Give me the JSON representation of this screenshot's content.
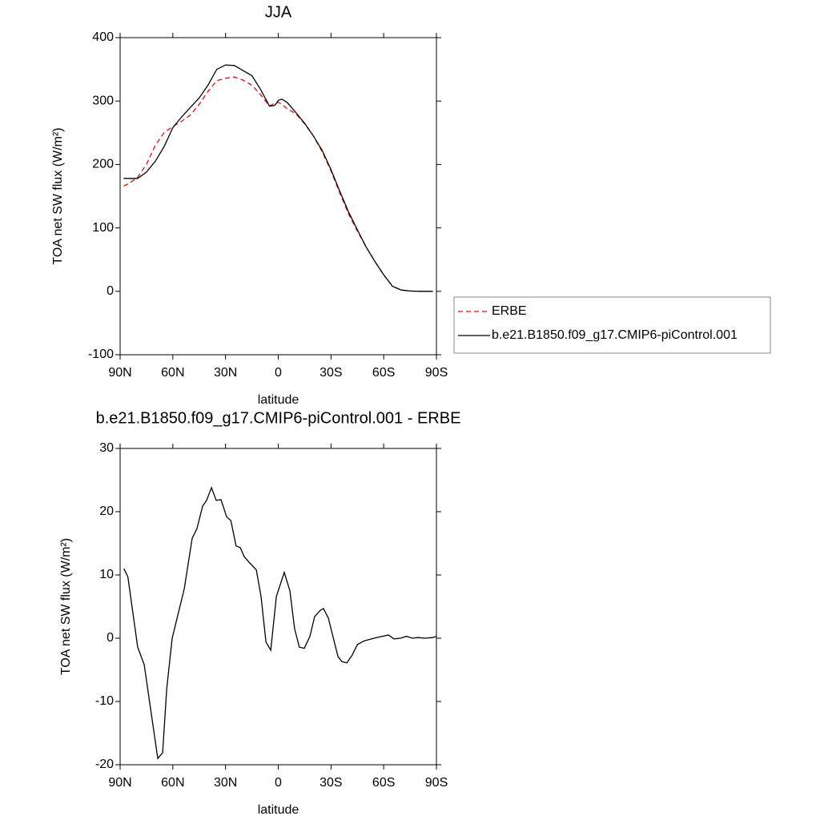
{
  "chart_data": [
    {
      "type": "line",
      "title": "JJA",
      "xlabel": "latitude",
      "ylabel": "TOA net SW flux (W/m²)",
      "x": [
        88,
        85,
        80,
        75,
        70,
        65,
        60,
        55,
        50,
        45,
        40,
        35,
        30,
        25,
        20,
        15,
        10,
        5,
        2,
        0,
        -2,
        -5,
        -10,
        -15,
        -20,
        -25,
        -30,
        -35,
        -40,
        -45,
        -50,
        -55,
        -60,
        -65,
        -70,
        -75,
        -80,
        -85,
        -88
      ],
      "series": [
        {
          "name": "ERBE",
          "color": "#ff0000",
          "linestyle": "dashed",
          "values": [
            166,
            170,
            180,
            200,
            230,
            250,
            260,
            268,
            278,
            295,
            315,
            332,
            336,
            338,
            333,
            325,
            310,
            292,
            297,
            298,
            295,
            288,
            280,
            264,
            245,
            220,
            190,
            155,
            122,
            95,
            70,
            47,
            26,
            8,
            2,
            0.5,
            0,
            0,
            0
          ]
        },
        {
          "name": "b.e21.B1850.f09_g17.CMIP6-piControl.001",
          "color": "#000000",
          "linestyle": "solid",
          "values": [
            178,
            178,
            178,
            188,
            205,
            228,
            258,
            275,
            290,
            305,
            325,
            350,
            357,
            356,
            348,
            340,
            318,
            292,
            293,
            301,
            303,
            298,
            282,
            265,
            245,
            222,
            192,
            158,
            125,
            97,
            70,
            47,
            26,
            8,
            2,
            0.5,
            0,
            0,
            0
          ]
        }
      ],
      "xlim": [
        90,
        -90
      ],
      "xticks": [
        {
          "value": 90,
          "label": "90N"
        },
        {
          "value": 60,
          "label": "60N"
        },
        {
          "value": 30,
          "label": "30N"
        },
        0,
        {
          "value": -30,
          "label": "30S"
        },
        {
          "value": -60,
          "label": "60S"
        },
        {
          "value": -90,
          "label": "90S"
        }
      ],
      "ylim": [
        -100,
        400
      ],
      "yticks": [
        -100,
        0,
        100,
        200,
        300,
        400
      ],
      "legend": "right"
    },
    {
      "type": "line",
      "title": "b.e21.B1850.f09_g17.CMIP6-piControl.001 - ERBE",
      "xlabel": "latitude",
      "ylabel": "TOA net SW flux (W/m²)",
      "x": [
        87.8,
        85.6,
        80,
        76.3,
        68.6,
        65.8,
        63.5,
        60.4,
        53.5,
        49,
        46.3,
        43,
        40.8,
        38,
        35.3,
        32.6,
        29.4,
        27,
        24,
        21.6,
        19.4,
        16.2,
        12.5,
        9.8,
        7,
        4.3,
        1.1,
        -3.4,
        -6.6,
        -9.3,
        -12,
        -14.8,
        -18,
        -20.7,
        -23.9,
        -25.7,
        -28.5,
        -31.7,
        -34,
        -36.2,
        -39,
        -42,
        -45,
        -49,
        -55.8,
        -62.7,
        -65.8,
        -69.5,
        -73,
        -76.3,
        -79.5,
        -83.2,
        -87.8,
        -90
      ],
      "values": [
        11,
        9.7,
        -1.4,
        -4.2,
        -19,
        -18.1,
        -8,
        0,
        7.8,
        15.8,
        17.3,
        20.9,
        21.8,
        23.8,
        21.8,
        21.9,
        19.2,
        18.6,
        14.6,
        14.3,
        12.9,
        11.9,
        10.8,
        6.6,
        -0.6,
        -1.9,
        6.6,
        10.4,
        7.5,
        1.5,
        -1.4,
        -1.6,
        0.3,
        3.4,
        4.4,
        4.7,
        3.2,
        -0.4,
        -2.9,
        -3.7,
        -3.9,
        -2.7,
        -1,
        -0.4,
        0.1,
        0.5,
        -0.1,
        0,
        0.3,
        0,
        0.1,
        0,
        0.1,
        0.3
      ],
      "color": "#000000",
      "xlim": [
        90,
        -90
      ],
      "xticks": [
        {
          "value": 90,
          "label": "90N"
        },
        {
          "value": 60,
          "label": "60N"
        },
        {
          "value": 30,
          "label": "30N"
        },
        0,
        {
          "value": -30,
          "label": "30S"
        },
        {
          "value": -60,
          "label": "60S"
        },
        {
          "value": -90,
          "label": "90S"
        }
      ],
      "ylim": [
        -20,
        30
      ],
      "yticks": [
        -20,
        -10,
        0,
        10,
        20,
        30
      ]
    }
  ]
}
